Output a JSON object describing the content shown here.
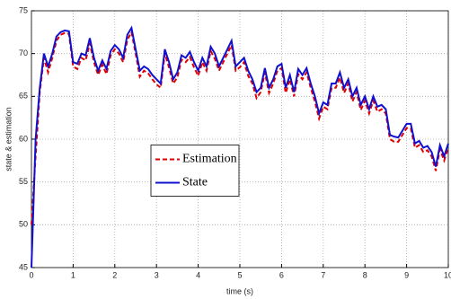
{
  "chart_data": {
    "type": "line",
    "xlabel": "time (s)",
    "ylabel": "state & estimation",
    "x": [
      0,
      0.1,
      0.2,
      0.3,
      0.4,
      0.5,
      0.6,
      0.7,
      0.8,
      0.9,
      1,
      1.1,
      1.2,
      1.3,
      1.4,
      1.5,
      1.6,
      1.7,
      1.8,
      1.9,
      2,
      2.1,
      2.2,
      2.3,
      2.4,
      2.5,
      2.6,
      2.7,
      2.8,
      2.9,
      3,
      3.1,
      3.2,
      3.3,
      3.4,
      3.5,
      3.6,
      3.7,
      3.8,
      3.9,
      4,
      4.1,
      4.2,
      4.3,
      4.4,
      4.5,
      4.6,
      4.7,
      4.8,
      4.9,
      5,
      5.1,
      5.2,
      5.3,
      5.4,
      5.5,
      5.6,
      5.7,
      5.8,
      5.9,
      6,
      6.1,
      6.2,
      6.3,
      6.4,
      6.5,
      6.6,
      6.7,
      6.8,
      6.9,
      7,
      7.1,
      7.2,
      7.3,
      7.4,
      7.5,
      7.6,
      7.7,
      7.8,
      7.9,
      8,
      8.1,
      8.2,
      8.3,
      8.4,
      8.5,
      8.6,
      8.7,
      8.8,
      8.9,
      9,
      9.1,
      9.2,
      9.3,
      9.4,
      9.5,
      9.6,
      9.7,
      9.8,
      9.9,
      10
    ],
    "series": [
      {
        "name": "Estimation",
        "color": "#e00000",
        "dash": true,
        "values": [
          50,
          58,
          65.5,
          69.5,
          67.8,
          69.5,
          71.5,
          72.2,
          72.4,
          72.3,
          68.5,
          68.2,
          69.5,
          69.2,
          71.2,
          69,
          67.5,
          68.7,
          67.6,
          69.8,
          70.5,
          70,
          69,
          71.6,
          72.5,
          70,
          67.3,
          68,
          67.7,
          67,
          66.4,
          66,
          70,
          68.4,
          66.5,
          67.2,
          69.3,
          69,
          69.6,
          68.4,
          67.4,
          69,
          68,
          70.3,
          69.4,
          68,
          69,
          70,
          71,
          68,
          68.4,
          69,
          67.4,
          66.5,
          64.8,
          65.5,
          67.8,
          65.4,
          66.5,
          68,
          68.3,
          65.4,
          67,
          65,
          67.6,
          67,
          67.8,
          66,
          64.4,
          62.4,
          63.8,
          63.5,
          66,
          66,
          67.2,
          65.4,
          66.5,
          64.4,
          65.5,
          63.4,
          64.5,
          63,
          64.5,
          63.2,
          63.5,
          63,
          60,
          59.7,
          59.7,
          60.5,
          61.3,
          61.3,
          59,
          59.3,
          58.5,
          58.7,
          58,
          56.3,
          58.8,
          57.5,
          59
        ]
      },
      {
        "name": "State",
        "color": "#1010d0",
        "dash": false,
        "values": [
          45,
          60,
          66,
          70,
          68.5,
          70,
          72,
          72.5,
          72.7,
          72.6,
          69,
          68.8,
          70,
          69.8,
          71.8,
          69.5,
          68,
          69.2,
          68.2,
          70.3,
          71,
          70.5,
          69.5,
          72.2,
          73,
          70.5,
          68,
          68.5,
          68.2,
          67.5,
          67,
          66.5,
          70.5,
          69,
          67,
          67.8,
          69.8,
          69.5,
          70.2,
          69,
          68,
          69.5,
          68.5,
          70.8,
          70,
          68.5,
          69.5,
          70.5,
          71.5,
          68.5,
          69,
          69.5,
          68,
          67,
          65.5,
          66,
          68.3,
          66,
          67,
          68.5,
          68.8,
          66,
          67.5,
          65.5,
          68.2,
          67.5,
          68.3,
          66.5,
          65,
          63,
          64.3,
          64,
          66.5,
          66.5,
          67.8,
          66,
          67,
          65,
          66,
          64,
          65,
          63.5,
          65,
          63.8,
          64,
          63.5,
          60.5,
          60.3,
          60.2,
          61,
          61.8,
          61.8,
          59.5,
          59.8,
          59,
          59.2,
          58.5,
          56.8,
          59.3,
          58,
          59.5
        ]
      }
    ],
    "xlim": [
      0,
      10
    ],
    "xticks": [
      0,
      1,
      2,
      3,
      4,
      5,
      6,
      7,
      8,
      9,
      10
    ],
    "ylim": [
      45,
      75
    ],
    "yticks": [
      45,
      50,
      55,
      60,
      65,
      70,
      75
    ],
    "grid": true,
    "legend": "center"
  }
}
